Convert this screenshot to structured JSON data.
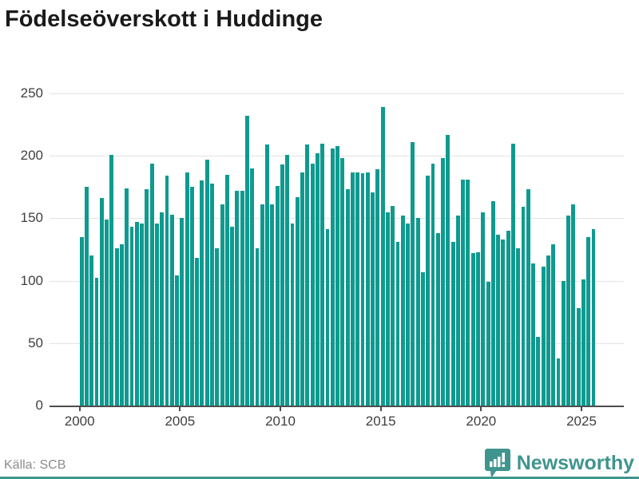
{
  "title": "Födelseöverskott i Huddinge",
  "source": "Källa: SCB",
  "branding": {
    "name": "Newsworthy"
  },
  "colors": {
    "bar": "#0f9a8f",
    "brand": "#3f958e",
    "grid": "#e3e3e3",
    "axis": "#4d4d4d",
    "title_text": "#1a1a1a",
    "tick_text": "#404040",
    "source_text": "#8c8c8c"
  },
  "chart_data": {
    "type": "bar",
    "title": "Födelseöverskott i Huddinge",
    "xlabel": "",
    "ylabel": "",
    "frequency": "quarterly",
    "x_start": "2000 Q1",
    "x_end": "2025 Q3",
    "x_tick_labels": [
      "2000",
      "2005",
      "2010",
      "2015",
      "2020",
      "2025"
    ],
    "x_tick_quarter_indices": [
      0,
      20,
      40,
      60,
      80,
      100
    ],
    "y_ticks": [
      0,
      50,
      100,
      150,
      200,
      250
    ],
    "ylim": [
      0,
      254
    ],
    "grid": "horizontal",
    "legend": "none",
    "values": [
      135,
      175,
      120,
      102,
      166,
      149,
      201,
      126,
      129,
      174,
      143,
      147,
      146,
      173,
      194,
      146,
      155,
      184,
      153,
      104,
      150,
      187,
      175,
      118,
      180,
      197,
      178,
      126,
      161,
      185,
      143,
      172,
      172,
      232,
      190,
      126,
      161,
      209,
      161,
      176,
      193,
      201,
      146,
      167,
      187,
      209,
      194,
      202,
      210,
      141,
      206,
      208,
      198,
      173,
      187,
      187,
      186,
      187,
      171,
      189,
      239,
      155,
      160,
      131,
      152,
      146,
      211,
      150,
      107,
      184,
      194,
      138,
      198,
      217,
      131,
      152,
      181,
      181,
      122,
      123,
      155,
      99,
      164,
      137,
      133,
      140,
      210,
      126,
      159,
      173,
      114,
      55,
      111,
      120,
      129,
      38,
      100,
      152,
      161,
      78,
      101,
      135,
      141
    ]
  }
}
